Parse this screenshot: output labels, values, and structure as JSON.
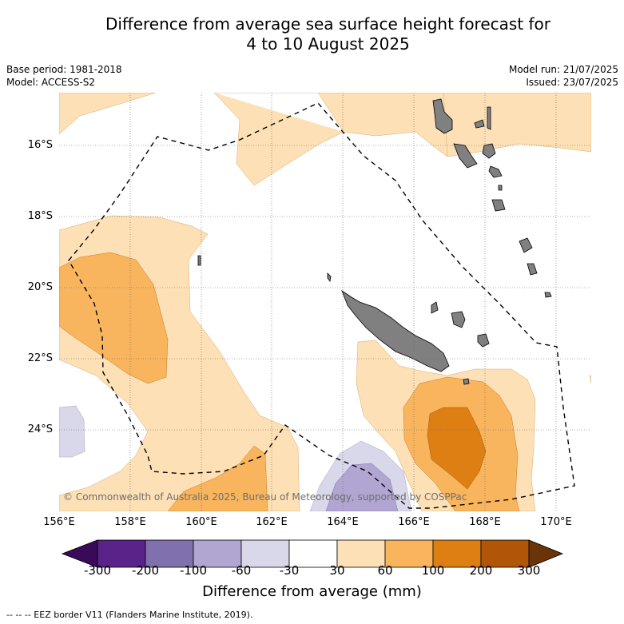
{
  "header": {
    "title_line1": "Difference from average sea surface height forecast for",
    "title_line2": "4 to 10 August 2025",
    "base_period": "Base period: 1981-2018",
    "model": "Model: ACCESS-S2",
    "model_run": "Model run: 21/07/2025",
    "issued": "Issued: 23/07/2025"
  },
  "map": {
    "lat_labels": [
      "16°S",
      "18°S",
      "20°S",
      "22°S",
      "24°S"
    ],
    "lon_labels": [
      "156°E",
      "158°E",
      "160°E",
      "162°E",
      "164°E",
      "166°E",
      "168°E",
      "170°E"
    ],
    "copyright": "© Commonwealth of Australia 2025, Bureau of Meteorology, supported by COSPPac"
  },
  "colorbar": {
    "title": "Difference from average (mm)",
    "ticks": [
      "-300",
      "-200",
      "-100",
      "-60",
      "-30",
      "30",
      "60",
      "100",
      "200",
      "300"
    ],
    "colors": [
      "#3a0a5a",
      "#59238a",
      "#8070ad",
      "#b0a6d1",
      "#d9d8ea",
      "#ffffff",
      "#fde0b5",
      "#f8b55e",
      "#de7f14",
      "#b15609",
      "#6b3308"
    ]
  },
  "footer": {
    "legend_text": "-- -- -- EEZ border V11 (Flanders Marine Institute, 2019)."
  }
}
